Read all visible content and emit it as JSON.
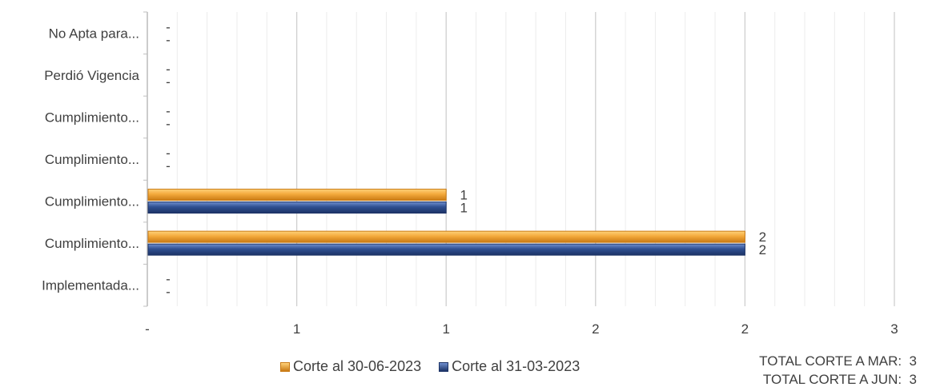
{
  "chart_data": {
    "type": "bar",
    "orientation": "horizontal",
    "categories": [
      "No Apta para...",
      "Perdió Vigencia",
      "Cumplimiento...",
      "Cumplimiento...",
      "Cumplimiento...",
      "Cumplimiento...",
      "Implementada..."
    ],
    "series": [
      {
        "name": "Corte al 30-06-2023",
        "color": "#F0A030",
        "values": [
          0,
          0,
          0,
          0,
          1,
          2,
          0
        ],
        "labels": [
          "-",
          "-",
          "-",
          "-",
          "1",
          "2",
          "-"
        ]
      },
      {
        "name": "Corte al 31-03-2023",
        "color": "#2F4F8F",
        "values": [
          0,
          0,
          0,
          0,
          1,
          2,
          0
        ],
        "labels": [
          "-",
          "-",
          "-",
          "-",
          "1",
          "2",
          "-"
        ]
      }
    ],
    "xlim": [
      0,
      2.5
    ],
    "x_ticks": [
      0,
      0.5,
      1,
      1.5,
      2,
      2.5
    ],
    "x_tick_labels": [
      "-",
      "1",
      "1",
      "2",
      "2",
      "3"
    ],
    "grid": true,
    "legend_position": "bottom"
  },
  "totals": [
    {
      "label": "TOTAL CORTE A MAR:",
      "value": "3"
    },
    {
      "label": "TOTAL CORTE A JUN:",
      "value": "3"
    }
  ]
}
